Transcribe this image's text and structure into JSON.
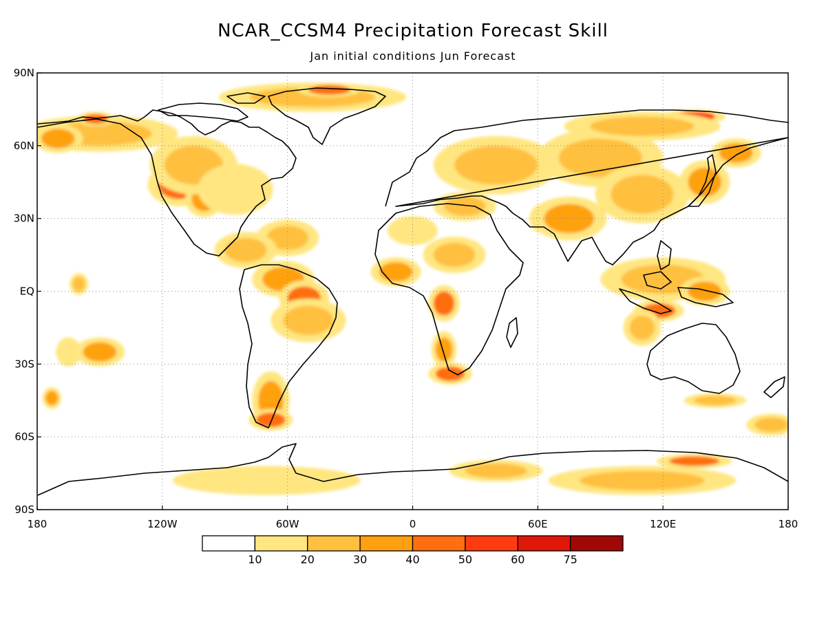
{
  "title": "NCAR_CCSM4 Precipitation Forecast Skill",
  "subtitle": "Jan initial conditions   Jun Forecast",
  "map": {
    "projection": "equirectangular",
    "lon_range": [
      -180,
      180
    ],
    "lat_range": [
      -90,
      90
    ],
    "gridlines": "dotted",
    "x_ticks": [
      {
        "value": -180,
        "label": "180"
      },
      {
        "value": -120,
        "label": "120W"
      },
      {
        "value": -60,
        "label": "60W"
      },
      {
        "value": 0,
        "label": "0"
      },
      {
        "value": 60,
        "label": "60E"
      },
      {
        "value": 120,
        "label": "120E"
      },
      {
        "value": 180,
        "label": "180"
      }
    ],
    "y_ticks": [
      {
        "value": 90,
        "label": "90N"
      },
      {
        "value": 60,
        "label": "60N"
      },
      {
        "value": 30,
        "label": "30N"
      },
      {
        "value": 0,
        "label": "EQ"
      },
      {
        "value": -30,
        "label": "30S"
      },
      {
        "value": -60,
        "label": "60S"
      },
      {
        "value": -90,
        "label": "90S"
      }
    ]
  },
  "colorbar": {
    "boundaries": [
      "10",
      "20",
      "30",
      "40",
      "50",
      "60",
      "75"
    ],
    "colors": [
      "#ffffff",
      "#ffe680",
      "#ffc040",
      "#ffa010",
      "#ff6e10",
      "#ff3c10",
      "#e01808",
      "#a00808"
    ]
  },
  "chart_data": {
    "type": "heatmap",
    "title": "NCAR_CCSM4 Precipitation Forecast Skill",
    "subtitle": "Jan initial conditions   Jun Forecast",
    "x_axis": {
      "min": -180,
      "max": 180,
      "ticks": [
        "180",
        "120W",
        "60W",
        "0",
        "60E",
        "120E",
        "180"
      ]
    },
    "y_axis": {
      "min": -90,
      "max": 90,
      "ticks": [
        "90N",
        "60N",
        "30N",
        "EQ",
        "30S",
        "60S",
        "90S"
      ]
    },
    "legend": "colorbar-bottom",
    "bins": [
      0,
      10,
      20,
      30,
      40,
      50,
      60,
      75,
      100
    ],
    "regions": [
      {
        "lon": -112,
        "lat": 44,
        "rx": 10,
        "ry": 6,
        "v": 45
      },
      {
        "lon": -100,
        "lat": 38,
        "rx": 6,
        "ry": 5,
        "v": 35
      },
      {
        "lon": -105,
        "lat": 52,
        "rx": 14,
        "ry": 8,
        "v": 22
      },
      {
        "lon": -85,
        "lat": 42,
        "rx": 12,
        "ry": 7,
        "v": 18
      },
      {
        "lon": -150,
        "lat": 65,
        "rx": 25,
        "ry": 5,
        "v": 22
      },
      {
        "lon": -152,
        "lat": 71,
        "rx": 6,
        "ry": 2,
        "v": 48
      },
      {
        "lon": -170,
        "lat": 63,
        "rx": 8,
        "ry": 4,
        "v": 30
      },
      {
        "lon": -48,
        "lat": 80,
        "rx": 30,
        "ry": 4,
        "v": 28
      },
      {
        "lon": -40,
        "lat": 83,
        "rx": 10,
        "ry": 2,
        "v": 45
      },
      {
        "lon": -60,
        "lat": 22,
        "rx": 10,
        "ry": 5,
        "v": 25
      },
      {
        "lon": -80,
        "lat": 17,
        "rx": 10,
        "ry": 5,
        "v": 20
      },
      {
        "lon": -62,
        "lat": 5,
        "rx": 10,
        "ry": 5,
        "v": 35
      },
      {
        "lon": -52,
        "lat": -3,
        "rx": 8,
        "ry": 5,
        "v": 40
      },
      {
        "lon": -50,
        "lat": -12,
        "rx": 12,
        "ry": 6,
        "v": 20
      },
      {
        "lon": -68,
        "lat": -45,
        "rx": 6,
        "ry": 8,
        "v": 35
      },
      {
        "lon": -68,
        "lat": -53,
        "rx": 7,
        "ry": 3,
        "v": 40
      },
      {
        "lon": -150,
        "lat": -25,
        "rx": 8,
        "ry": 4,
        "v": 30
      },
      {
        "lon": -165,
        "lat": -25,
        "rx": 4,
        "ry": 4,
        "v": 18
      },
      {
        "lon": -160,
        "lat": 3,
        "rx": 3,
        "ry": 3,
        "v": 22
      },
      {
        "lon": -173,
        "lat": -44,
        "rx": 3,
        "ry": 3,
        "v": 30
      },
      {
        "lon": -8,
        "lat": 8,
        "rx": 8,
        "ry": 4,
        "v": 30
      },
      {
        "lon": 15,
        "lat": -5,
        "rx": 5,
        "ry": 5,
        "v": 45
      },
      {
        "lon": 18,
        "lat": -34,
        "rx": 7,
        "ry": 3,
        "v": 45
      },
      {
        "lon": 15,
        "lat": -24,
        "rx": 4,
        "ry": 5,
        "v": 35
      },
      {
        "lon": 20,
        "lat": 15,
        "rx": 10,
        "ry": 5,
        "v": 22
      },
      {
        "lon": 0,
        "lat": 25,
        "rx": 8,
        "ry": 4,
        "v": 18
      },
      {
        "lon": 25,
        "lat": 35,
        "rx": 10,
        "ry": 4,
        "v": 22
      },
      {
        "lon": 40,
        "lat": 52,
        "rx": 20,
        "ry": 8,
        "v": 25
      },
      {
        "lon": 62,
        "lat": 30,
        "rx": 4,
        "ry": 4,
        "v": 60
      },
      {
        "lon": 75,
        "lat": 30,
        "rx": 12,
        "ry": 6,
        "v": 30
      },
      {
        "lon": 90,
        "lat": 55,
        "rx": 20,
        "ry": 8,
        "v": 25
      },
      {
        "lon": 110,
        "lat": 40,
        "rx": 15,
        "ry": 8,
        "v": 25
      },
      {
        "lon": 140,
        "lat": 45,
        "rx": 8,
        "ry": 6,
        "v": 30
      },
      {
        "lon": 155,
        "lat": 57,
        "rx": 8,
        "ry": 4,
        "v": 35
      },
      {
        "lon": 135,
        "lat": 72,
        "rx": 10,
        "ry": 2,
        "v": 50
      },
      {
        "lon": 110,
        "lat": 68,
        "rx": 25,
        "ry": 4,
        "v": 20
      },
      {
        "lon": 120,
        "lat": 5,
        "rx": 20,
        "ry": 6,
        "v": 25
      },
      {
        "lon": 118,
        "lat": -8,
        "rx": 8,
        "ry": 3,
        "v": 45
      },
      {
        "lon": 140,
        "lat": 0,
        "rx": 8,
        "ry": 4,
        "v": 30
      },
      {
        "lon": 110,
        "lat": -15,
        "rx": 6,
        "ry": 5,
        "v": 20
      },
      {
        "lon": 145,
        "lat": -45,
        "rx": 10,
        "ry": 2,
        "v": 22
      },
      {
        "lon": 172,
        "lat": -55,
        "rx": 8,
        "ry": 3,
        "v": 20
      },
      {
        "lon": 135,
        "lat": -70,
        "rx": 12,
        "ry": 2,
        "v": 45
      },
      {
        "lon": 110,
        "lat": -78,
        "rx": 30,
        "ry": 4,
        "v": 22
      },
      {
        "lon": 40,
        "lat": -74,
        "rx": 15,
        "ry": 3,
        "v": 25
      },
      {
        "lon": -70,
        "lat": -78,
        "rx": 30,
        "ry": 4,
        "v": 15
      }
    ]
  }
}
